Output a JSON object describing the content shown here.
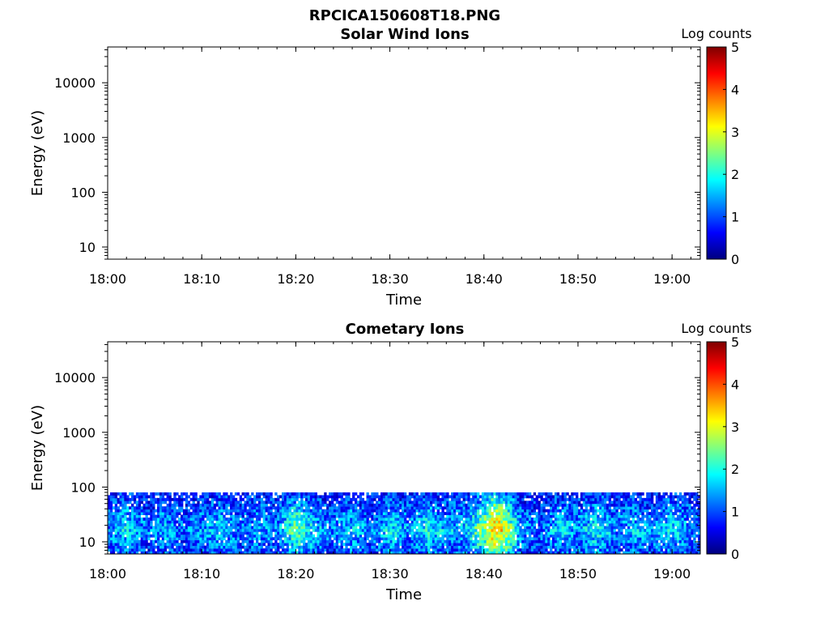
{
  "figure_title": "RPCICA150608T18.PNG",
  "chart_data": [
    {
      "type": "heatmap",
      "title": "Solar Wind Ions",
      "xlabel": "Time",
      "ylabel": "Energy (eV)",
      "x_range": [
        "18:00",
        "19:03"
      ],
      "x_ticks": [
        "18:00",
        "18:10",
        "18:20",
        "18:30",
        "18:40",
        "18:50",
        "19:00"
      ],
      "y_scale": "log",
      "y_range": [
        6,
        45000
      ],
      "y_ticks": [
        10,
        100,
        1000,
        10000
      ],
      "y_tick_labels": [
        "10",
        "100",
        "1000",
        "10000"
      ],
      "colorbar": {
        "label": "Log counts",
        "range": [
          0,
          5
        ],
        "ticks": [
          "0",
          "1",
          "2",
          "3",
          "4",
          "5"
        ],
        "colormap": "jet"
      },
      "data": []
    },
    {
      "type": "heatmap",
      "title": "Cometary Ions",
      "xlabel": "Time",
      "ylabel": "Energy (eV)",
      "x_range": [
        "18:00",
        "19:03"
      ],
      "x_ticks": [
        "18:00",
        "18:10",
        "18:20",
        "18:30",
        "18:40",
        "18:50",
        "19:00"
      ],
      "y_scale": "log",
      "y_range": [
        6,
        45000
      ],
      "y_ticks": [
        10,
        100,
        1000,
        10000
      ],
      "y_tick_labels": [
        "10",
        "100",
        "1000",
        "10000"
      ],
      "colorbar": {
        "label": "Log counts",
        "range": [
          0,
          5
        ],
        "ticks": [
          "0",
          "1",
          "2",
          "3",
          "4",
          "5"
        ],
        "colormap": "jet"
      },
      "energy_band_eV": [
        6,
        80
      ],
      "data": [
        {
          "time": "18:00",
          "level": 1.3
        },
        {
          "time": "18:02",
          "level": 1.8
        },
        {
          "time": "18:04",
          "level": 1.2
        },
        {
          "time": "18:06",
          "level": 1.6
        },
        {
          "time": "18:08",
          "level": 1.1
        },
        {
          "time": "18:10",
          "level": 1.4
        },
        {
          "time": "18:12",
          "level": 1.7
        },
        {
          "time": "18:14",
          "level": 1.2
        },
        {
          "time": "18:16",
          "level": 1.5
        },
        {
          "time": "18:18",
          "level": 1.3
        },
        {
          "time": "18:20",
          "level": 2.4
        },
        {
          "time": "18:22",
          "level": 1.6
        },
        {
          "time": "18:24",
          "level": 1.3
        },
        {
          "time": "18:26",
          "level": 1.7
        },
        {
          "time": "18:28",
          "level": 1.2
        },
        {
          "time": "18:30",
          "level": 1.8
        },
        {
          "time": "18:32",
          "level": 1.4
        },
        {
          "time": "18:34",
          "level": 1.9
        },
        {
          "time": "18:36",
          "level": 1.5
        },
        {
          "time": "18:38",
          "level": 1.6
        },
        {
          "time": "18:40",
          "level": 2.6
        },
        {
          "time": "18:41",
          "level": 3.5
        },
        {
          "time": "18:42",
          "level": 3.2
        },
        {
          "time": "18:44",
          "level": 1.4
        },
        {
          "time": "18:46",
          "level": 1.2
        },
        {
          "time": "18:48",
          "level": 1.7
        },
        {
          "time": "18:50",
          "level": 1.4
        },
        {
          "time": "18:52",
          "level": 1.9
        },
        {
          "time": "18:54",
          "level": 1.3
        },
        {
          "time": "18:56",
          "level": 1.6
        },
        {
          "time": "18:58",
          "level": 1.4
        },
        {
          "time": "19:00",
          "level": 1.8
        },
        {
          "time": "19:02",
          "level": 1.3
        }
      ]
    }
  ]
}
